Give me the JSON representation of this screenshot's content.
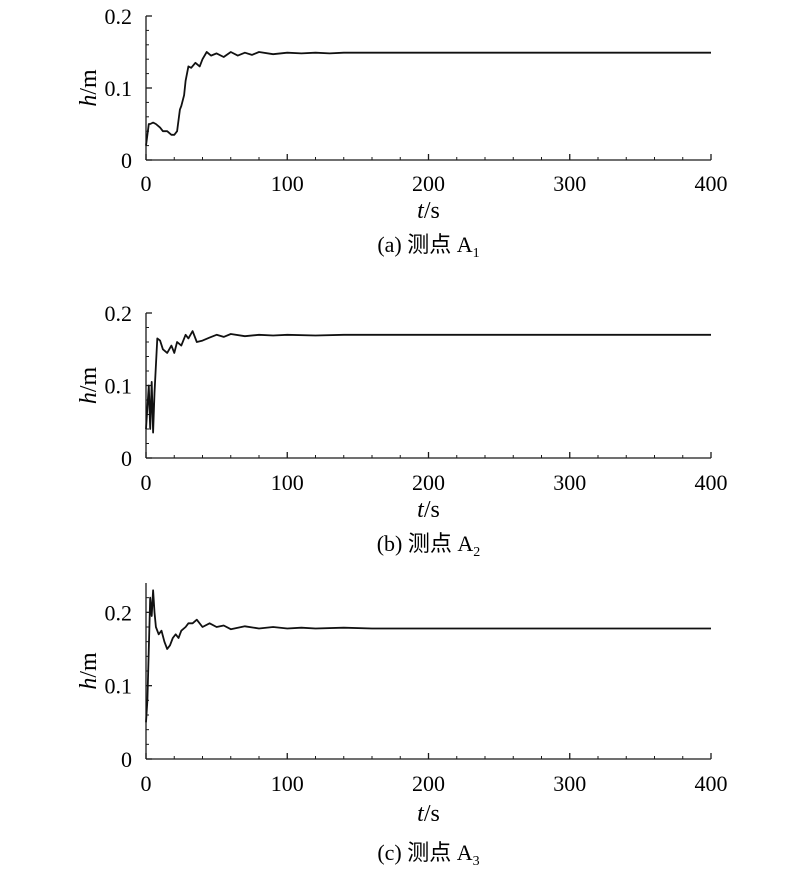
{
  "chart_data": [
    {
      "type": "line",
      "caption": "(a) 测点 A",
      "caption_sub": "1",
      "xlabel_var": "t",
      "xlabel_unit": "/s",
      "ylabel_var": "h",
      "ylabel_unit": "/m",
      "xlim": [
        0,
        400
      ],
      "ylim": [
        0,
        0.2
      ],
      "xticks": [
        0,
        100,
        200,
        300,
        400
      ],
      "xtick_labels": [
        "0",
        "100",
        "200",
        "300",
        "400"
      ],
      "yticks": [
        0,
        0.1,
        0.2
      ],
      "ytick_labels": [
        "0",
        "0.1",
        "0.2"
      ],
      "grid": false,
      "series": [
        {
          "x": [
            0,
            1,
            2,
            3,
            5,
            7,
            10,
            12,
            15,
            18,
            20,
            22,
            24,
            25,
            27,
            28,
            30,
            32,
            35,
            38,
            40,
            43,
            46,
            50,
            55,
            60,
            65,
            70,
            75,
            80,
            90,
            100,
            110,
            120,
            130,
            140,
            150,
            200,
            250,
            300,
            350,
            400
          ],
          "y": [
            0.02,
            0.035,
            0.05,
            0.05,
            0.052,
            0.05,
            0.045,
            0.04,
            0.04,
            0.035,
            0.035,
            0.04,
            0.07,
            0.075,
            0.09,
            0.11,
            0.13,
            0.128,
            0.135,
            0.13,
            0.14,
            0.15,
            0.145,
            0.148,
            0.143,
            0.15,
            0.145,
            0.149,
            0.146,
            0.15,
            0.147,
            0.149,
            0.148,
            0.149,
            0.148,
            0.149,
            0.149,
            0.149,
            0.149,
            0.149,
            0.149,
            0.149
          ]
        }
      ]
    },
    {
      "type": "line",
      "caption": "(b) 测点 A",
      "caption_sub": "2",
      "xlabel_var": "t",
      "xlabel_unit": "/s",
      "ylabel_var": "h",
      "ylabel_unit": "/m",
      "xlim": [
        0,
        400
      ],
      "ylim": [
        0,
        0.2
      ],
      "xticks": [
        0,
        100,
        200,
        300,
        400
      ],
      "xtick_labels": [
        "0",
        "100",
        "200",
        "300",
        "400"
      ],
      "yticks": [
        0,
        0.1,
        0.2
      ],
      "ytick_labels": [
        "0",
        "0.1",
        "0.2"
      ],
      "grid": false,
      "series": [
        {
          "x": [
            0,
            1,
            2,
            3,
            4,
            5,
            6,
            8,
            10,
            12,
            15,
            18,
            20,
            22,
            25,
            28,
            30,
            33,
            36,
            40,
            45,
            50,
            55,
            60,
            70,
            80,
            90,
            100,
            120,
            140,
            160,
            200,
            250,
            300,
            350,
            400
          ],
          "y": [
            0.04,
            0.07,
            0.1,
            0.04,
            0.105,
            0.035,
            0.09,
            0.165,
            0.162,
            0.15,
            0.145,
            0.155,
            0.145,
            0.16,
            0.155,
            0.17,
            0.165,
            0.175,
            0.16,
            0.162,
            0.166,
            0.17,
            0.167,
            0.171,
            0.168,
            0.17,
            0.169,
            0.17,
            0.169,
            0.17,
            0.17,
            0.17,
            0.17,
            0.17,
            0.17,
            0.17
          ]
        }
      ]
    },
    {
      "type": "line",
      "caption": "(c) 测点 A",
      "caption_sub": "3",
      "xlabel_var": "t",
      "xlabel_unit": "/s",
      "ylabel_var": "h",
      "ylabel_unit": "/m",
      "xlim": [
        0,
        400
      ],
      "ylim": [
        0,
        0.24
      ],
      "xticks": [
        0,
        100,
        200,
        300,
        400
      ],
      "xtick_labels": [
        "0",
        "100",
        "200",
        "300",
        "400"
      ],
      "yticks": [
        0,
        0.1,
        0.2
      ],
      "ytick_labels": [
        "0",
        "0.1",
        "0.2"
      ],
      "grid": false,
      "series": [
        {
          "x": [
            0,
            1,
            2,
            3,
            4,
            5,
            6,
            7,
            9,
            11,
            13,
            15,
            17,
            19,
            21,
            23,
            25,
            28,
            30,
            33,
            36,
            40,
            45,
            50,
            55,
            60,
            70,
            80,
            90,
            100,
            110,
            120,
            140,
            160,
            200,
            250,
            300,
            350,
            400
          ],
          "y": [
            0.05,
            0.08,
            0.15,
            0.22,
            0.195,
            0.23,
            0.2,
            0.18,
            0.17,
            0.175,
            0.16,
            0.15,
            0.155,
            0.165,
            0.17,
            0.165,
            0.175,
            0.18,
            0.185,
            0.185,
            0.19,
            0.18,
            0.185,
            0.18,
            0.182,
            0.177,
            0.181,
            0.178,
            0.18,
            0.178,
            0.179,
            0.178,
            0.179,
            0.178,
            0.178,
            0.178,
            0.178,
            0.178,
            0.178
          ]
        }
      ]
    }
  ]
}
